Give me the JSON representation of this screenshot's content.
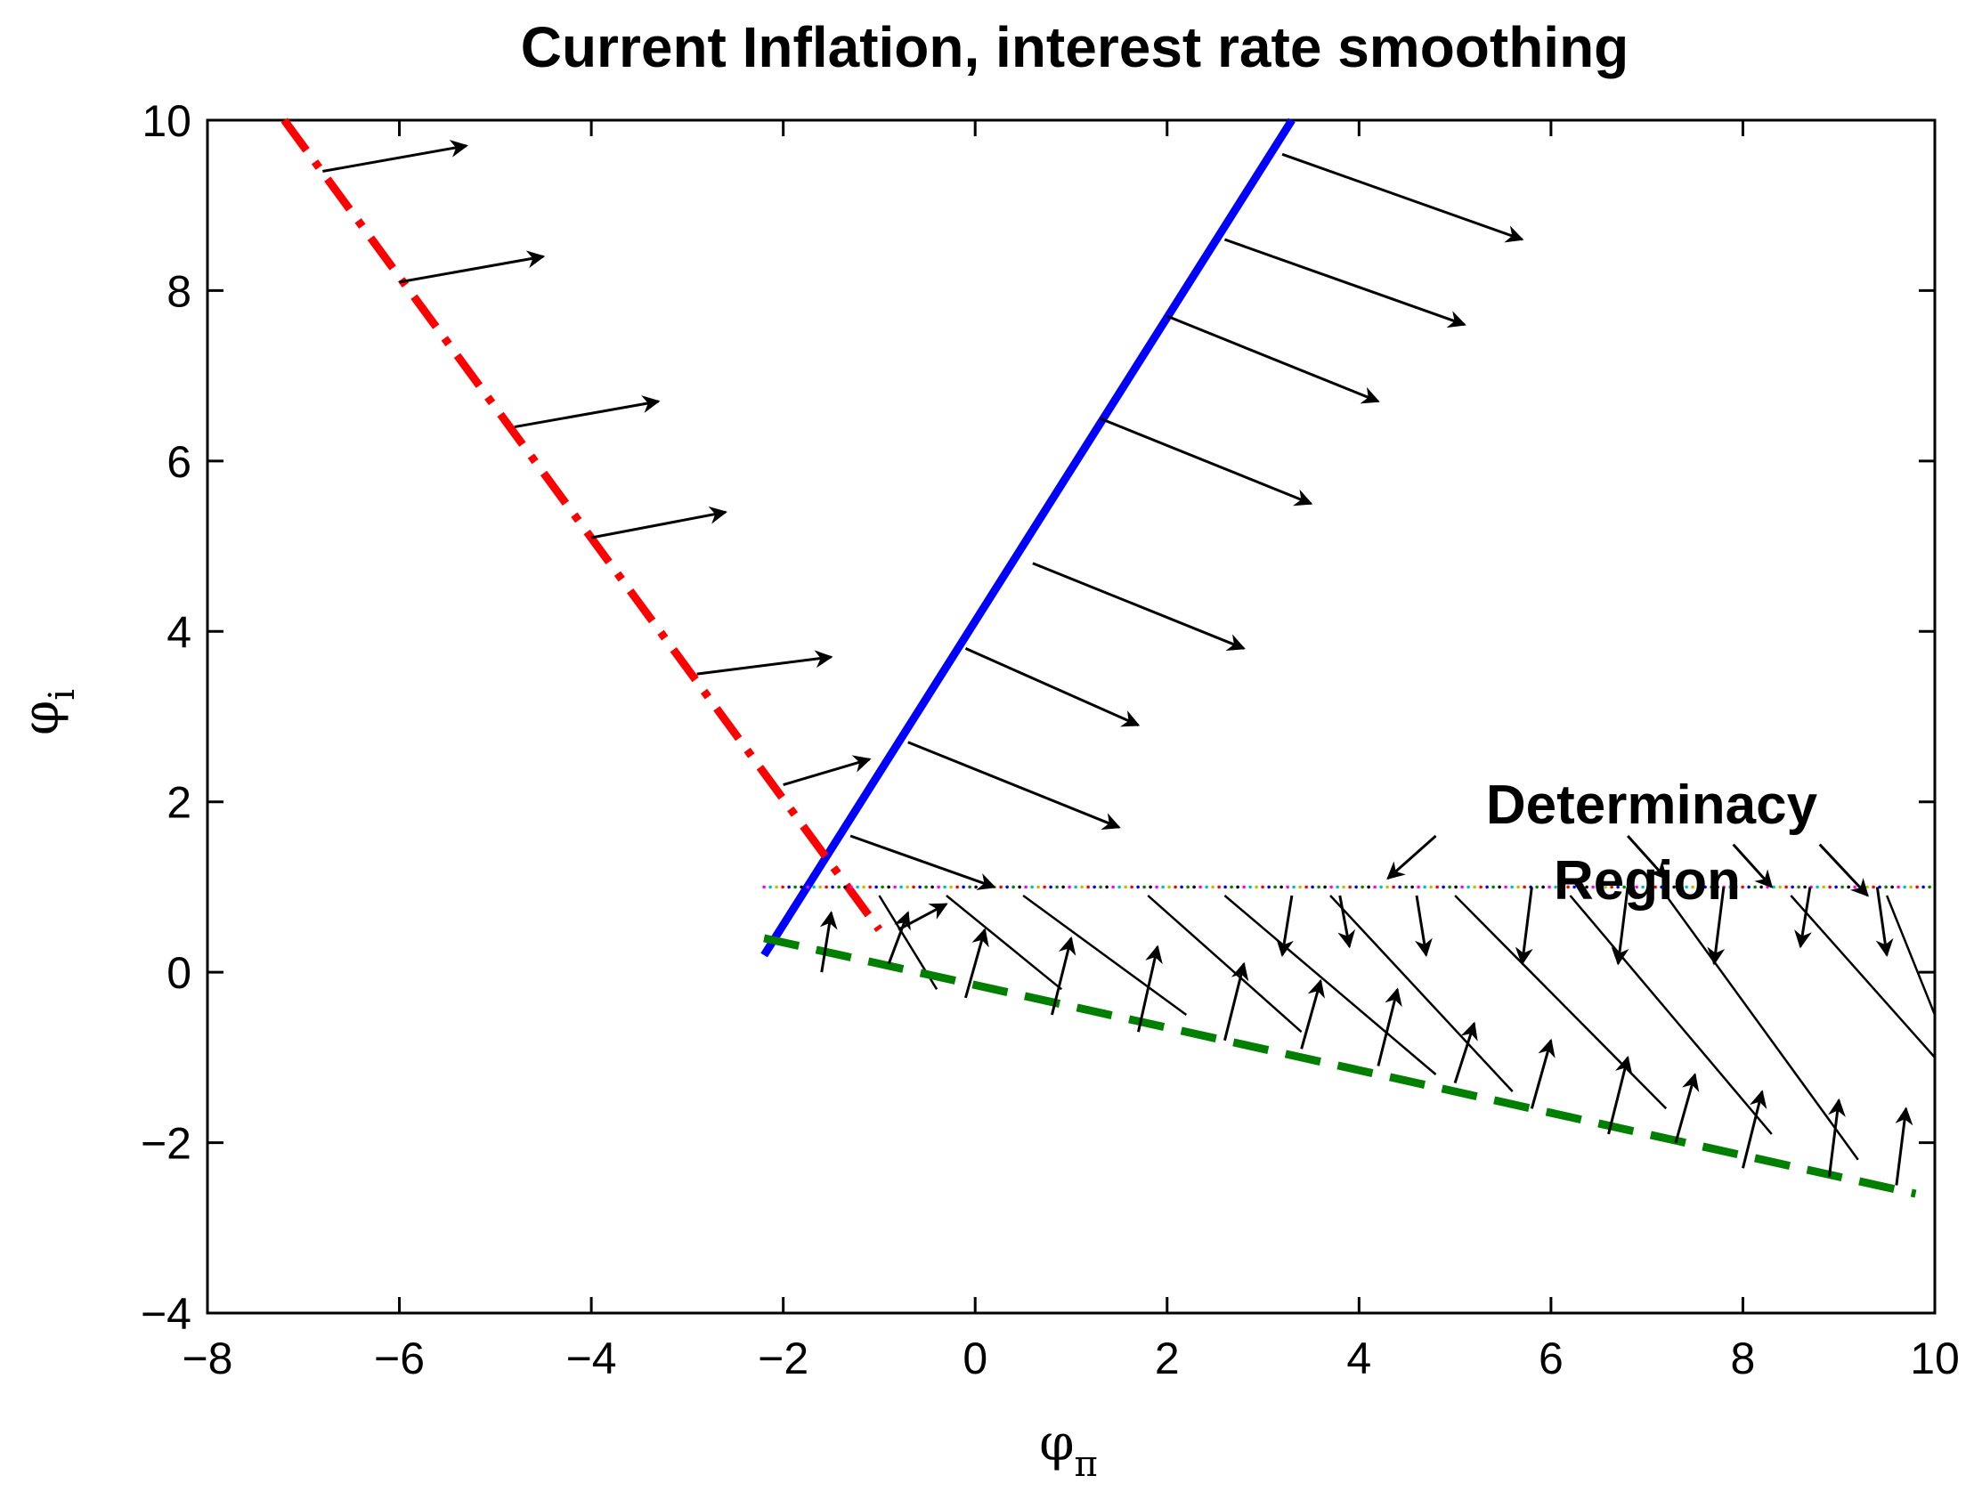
{
  "chart_data": {
    "type": "line",
    "title": "Current Inflation, interest rate smoothing",
    "xlabel": "φ",
    "xlabel_subscript": "π",
    "ylabel": "φ",
    "ylabel_subscript": "i",
    "xlim": [
      -8,
      10
    ],
    "ylim": [
      -4,
      10
    ],
    "xticks": [
      -8,
      -6,
      -4,
      -2,
      0,
      2,
      4,
      6,
      8,
      10
    ],
    "yticks": [
      -4,
      -2,
      0,
      2,
      4,
      6,
      8,
      10
    ],
    "grid": false,
    "annotation": {
      "line1": "Determinacy",
      "line2": "Region"
    },
    "series": [
      {
        "style": "solid",
        "color": "#0000ff",
        "points": [
          [
            -2.2,
            0.2
          ],
          [
            3.3,
            10
          ]
        ]
      },
      {
        "style": "dash-dot",
        "color": "#ff0000",
        "points": [
          [
            -7.2,
            10
          ],
          [
            -1.0,
            0.5
          ]
        ]
      },
      {
        "style": "dashed",
        "color": "#007f00",
        "points": [
          [
            -2.2,
            0.4
          ],
          [
            9.8,
            -2.6
          ]
        ]
      },
      {
        "style": "dotted-multicolor",
        "color": "#ff00ff",
        "points": [
          [
            -2.2,
            1.0
          ],
          [
            10,
            1.0
          ]
        ]
      }
    ],
    "arrows": [
      [
        -6.8,
        9.4,
        -5.3,
        9.7
      ],
      [
        -6.0,
        8.1,
        -4.5,
        8.4
      ],
      [
        -4.8,
        6.4,
        -3.3,
        6.7
      ],
      [
        -4.0,
        5.1,
        -2.6,
        5.4
      ],
      [
        -2.9,
        3.5,
        -1.5,
        3.7
      ],
      [
        -2.0,
        2.2,
        -1.1,
        2.5
      ],
      [
        3.2,
        9.6,
        5.7,
        8.6
      ],
      [
        2.6,
        8.6,
        5.1,
        7.6
      ],
      [
        2.0,
        7.7,
        4.2,
        6.7
      ],
      [
        1.3,
        6.5,
        3.5,
        5.5
      ],
      [
        0.6,
        4.8,
        2.8,
        3.8
      ],
      [
        -0.1,
        3.8,
        1.7,
        2.9
      ],
      [
        -0.7,
        2.7,
        1.5,
        1.7
      ],
      [
        -1.3,
        1.6,
        0.2,
        1.0
      ],
      [
        -0.8,
        0.5,
        -0.3,
        0.8
      ],
      [
        -1.6,
        0.0,
        -1.5,
        0.7
      ],
      [
        -0.9,
        0.1,
        -0.7,
        0.7
      ],
      [
        -0.1,
        -0.3,
        0.1,
        0.5
      ],
      [
        0.8,
        -0.5,
        1.0,
        0.4
      ],
      [
        1.7,
        -0.7,
        1.9,
        0.3
      ],
      [
        2.6,
        -0.8,
        2.8,
        0.1
      ],
      [
        3.4,
        -0.9,
        3.6,
        -0.1
      ],
      [
        4.2,
        -1.1,
        4.4,
        -0.2
      ],
      [
        5.0,
        -1.3,
        5.2,
        -0.6
      ],
      [
        5.8,
        -1.6,
        6.0,
        -0.8
      ],
      [
        6.6,
        -1.9,
        6.8,
        -1.0
      ],
      [
        7.3,
        -2.0,
        7.5,
        -1.2
      ],
      [
        8.0,
        -2.3,
        8.2,
        -1.4
      ],
      [
        8.9,
        -2.4,
        9.0,
        -1.5
      ],
      [
        9.6,
        -2.5,
        9.7,
        -1.6
      ],
      [
        3.3,
        0.9,
        3.2,
        0.2
      ],
      [
        3.8,
        0.9,
        3.9,
        0.3
      ],
      [
        4.6,
        0.9,
        4.7,
        0.2
      ],
      [
        5.8,
        1.0,
        5.7,
        0.1
      ],
      [
        6.8,
        1.0,
        6.7,
        0.1
      ],
      [
        7.8,
        1.0,
        7.7,
        0.1
      ],
      [
        8.7,
        1.0,
        8.6,
        0.3
      ],
      [
        9.4,
        1.0,
        9.5,
        0.2
      ],
      [
        4.8,
        1.6,
        4.3,
        1.1
      ],
      [
        6.8,
        1.6,
        7.2,
        1.1
      ],
      [
        7.9,
        1.5,
        8.3,
        1.0
      ],
      [
        8.8,
        1.5,
        9.3,
        0.9
      ]
    ],
    "flow_lines": [
      [
        -1.0,
        0.9,
        -0.4,
        -0.2
      ],
      [
        -0.3,
        0.9,
        0.9,
        -0.2
      ],
      [
        0.5,
        0.9,
        2.2,
        -0.5
      ],
      [
        1.8,
        0.9,
        3.4,
        -0.7
      ],
      [
        2.6,
        0.9,
        4.8,
        -1.2
      ],
      [
        3.7,
        0.9,
        5.6,
        -1.4
      ],
      [
        5.0,
        0.9,
        7.2,
        -1.6
      ],
      [
        6.2,
        0.9,
        8.3,
        -1.9
      ],
      [
        7.2,
        0.9,
        9.2,
        -2.2
      ],
      [
        8.5,
        0.9,
        10.0,
        -1.0
      ],
      [
        9.5,
        0.9,
        10.0,
        -0.5
      ]
    ]
  }
}
